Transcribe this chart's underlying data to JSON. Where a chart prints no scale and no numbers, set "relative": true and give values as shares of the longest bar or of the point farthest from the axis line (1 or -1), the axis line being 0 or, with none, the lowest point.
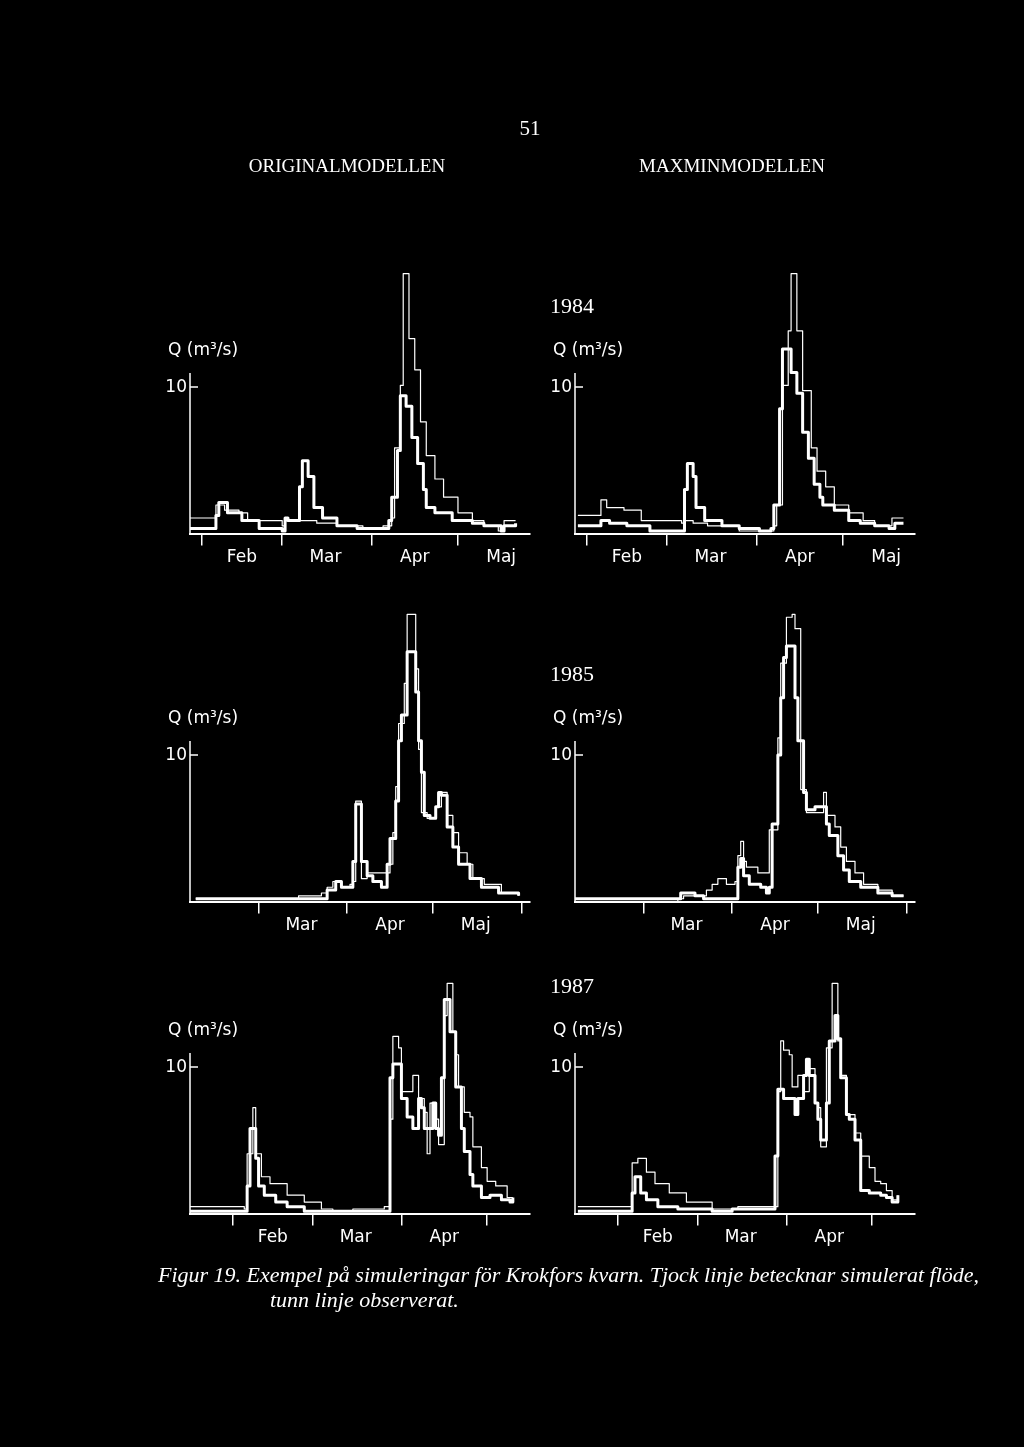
{
  "chart_data": [
    {
      "type": "step",
      "relative": true,
      "title": "ORIGINALMODELLEN",
      "ylabel": "Q (m³/s)",
      "annotations": [
        "10",
        "51"
      ],
      "xlim": [
        "--01-28",
        "--05-26"
      ],
      "xticks": [
        {
          "value": "--02-01",
          "label": null
        },
        {
          "value": "--02-15",
          "label": "Feb"
        },
        {
          "value": "--03-01",
          "label": null
        },
        {
          "value": "--03-16",
          "label": "Mar"
        },
        {
          "value": "--04-01",
          "label": null
        },
        {
          "value": "--04-16",
          "label": "Apr"
        },
        {
          "value": "--05-01",
          "label": null
        },
        {
          "value": "--05-16",
          "label": "Maj"
        }
      ],
      "series": [
        {
          "color": "#ffffff",
          "x": [
            "--01-28",
            "--02-04",
            "--02-06",
            "--02-07",
            "--02-10",
            "--02-15",
            "--02-21",
            "--03-01",
            "--03-02",
            "--03-03",
            "--03-07",
            "--03-08",
            "--03-10",
            "--03-12",
            "--03-15",
            "--03-20",
            "--03-27",
            "--04-01",
            "--04-05",
            "--04-07",
            "--04-08",
            "--04-10",
            "--04-11",
            "--04-13",
            "--04-15",
            "--04-17",
            "--04-19",
            "--04-20",
            "--04-23",
            "--04-29",
            "--05-06",
            "--05-10",
            "--05-16",
            "--05-17",
            "--05-21"
          ],
          "values": [
            0.02,
            0.02,
            0.07,
            0.12,
            0.08,
            0.05,
            0.02,
            0.01,
            0.06,
            0.05,
            0.18,
            0.28,
            0.22,
            0.1,
            0.06,
            0.03,
            0.02,
            0.02,
            0.02,
            0.05,
            0.14,
            0.32,
            0.53,
            0.49,
            0.37,
            0.27,
            0.17,
            0.1,
            0.08,
            0.05,
            0.04,
            0.03,
            0.01,
            0.03,
            0.04
          ]
        },
        {
          "color": "#ffffff",
          "x": [
            "--01-28",
            "--02-05",
            "--02-06",
            "--02-09",
            "--02-14",
            "--02-17",
            "--03-01",
            "--03-02",
            "--03-08",
            "--03-13",
            "--03-20",
            "--03-29",
            "--04-05",
            "--04-08",
            "--04-09",
            "--04-11",
            "--04-12",
            "--04-13",
            "--04-14",
            "--04-16",
            "--04-18",
            "--04-20",
            "--04-23",
            "--04-26",
            "--05-01",
            "--05-06",
            "--05-10",
            "--05-15",
            "--05-17",
            "--05-21"
          ],
          "values": [
            0.06,
            0.06,
            0.11,
            0.09,
            0.08,
            0.05,
            0.03,
            0.05,
            0.05,
            0.04,
            0.03,
            0.02,
            0.03,
            0.06,
            0.33,
            0.57,
            1,
            1,
            0.75,
            0.63,
            0.43,
            0.3,
            0.21,
            0.14,
            0.08,
            0.05,
            0.03,
            0.01,
            0.05,
            0.05
          ]
        }
      ]
    },
    {
      "type": "step",
      "relative": true,
      "title": "MAXMINMODELLEN",
      "subtitle": "1984",
      "ylabel": "Q (m³/s)",
      "annotations": [
        "10"
      ],
      "xlim": [
        "--01-28",
        "--05-26"
      ],
      "xticks": [
        {
          "value": "--02-01",
          "label": null
        },
        {
          "value": "--02-15",
          "label": "Feb"
        },
        {
          "value": "--03-01",
          "label": null
        },
        {
          "value": "--03-16",
          "label": "Mar"
        },
        {
          "value": "--04-01",
          "label": null
        },
        {
          "value": "--04-16",
          "label": "Apr"
        },
        {
          "value": "--05-01",
          "label": null
        },
        {
          "value": "--05-16",
          "label": "Maj"
        }
      ],
      "series": [
        {
          "color": "#ffffff",
          "x": [
            "--01-29",
            "--02-05",
            "--02-06",
            "--02-09",
            "--02-15",
            "--02-23",
            "--03-06",
            "--03-07",
            "--03-08",
            "--03-10",
            "--03-11",
            "--03-14",
            "--03-20",
            "--03-26",
            "--04-02",
            "--04-06",
            "--04-07",
            "--04-09",
            "--04-10",
            "--04-13",
            "--04-15",
            "--04-17",
            "--04-19",
            "--04-21",
            "--04-23",
            "--04-24",
            "--04-28",
            "--05-03",
            "--05-07",
            "--05-12",
            "--05-17",
            "--05-19",
            "--05-22"
          ],
          "values": [
            0.03,
            0.03,
            0.05,
            0.04,
            0.03,
            0.01,
            0.01,
            0.17,
            0.27,
            0.22,
            0.1,
            0.05,
            0.03,
            0.02,
            0.01,
            0.02,
            0.11,
            0.48,
            0.71,
            0.62,
            0.54,
            0.39,
            0.29,
            0.19,
            0.14,
            0.11,
            0.09,
            0.05,
            0.04,
            0.03,
            0.02,
            0.04,
            0.04
          ]
        },
        {
          "color": "#ffffff",
          "x": [
            "--01-29",
            "--02-05",
            "--02-06",
            "--02-08",
            "--02-14",
            "--02-20",
            "--03-06",
            "--03-07",
            "--03-10",
            "--03-15",
            "--03-26",
            "--04-07",
            "--04-08",
            "--04-10",
            "--04-12",
            "--04-13",
            "--04-15",
            "--04-17",
            "--04-20",
            "--04-22",
            "--04-25",
            "--04-28",
            "--05-03",
            "--05-08",
            "--05-12",
            "--05-17",
            "--05-18",
            "--05-22"
          ],
          "values": [
            0.07,
            0.07,
            0.13,
            0.1,
            0.09,
            0.05,
            0.04,
            0.05,
            0.04,
            0.03,
            0.01,
            0.03,
            0.11,
            0.57,
            0.78,
            1,
            0.78,
            0.55,
            0.33,
            0.24,
            0.18,
            0.11,
            0.08,
            0.05,
            0.03,
            0.03,
            0.06,
            0.06
          ]
        }
      ]
    },
    {
      "type": "step",
      "relative": true,
      "ylabel": "Q (m³/s)",
      "annotations": [
        "10"
      ],
      "xlim": [
        "--02-05",
        "--06-04"
      ],
      "xticks": [
        {
          "value": "--03-01",
          "label": null
        },
        {
          "value": "--03-16",
          "label": "Mar"
        },
        {
          "value": "--04-01",
          "label": null
        },
        {
          "value": "--04-16",
          "label": "Apr"
        },
        {
          "value": "--05-01",
          "label": null
        },
        {
          "value": "--05-16",
          "label": "Maj"
        },
        {
          "value": "--06-01",
          "label": null
        }
      ],
      "series": [
        {
          "color": "#ffffff",
          "x": [
            "--02-07",
            "--03-13",
            "--03-14",
            "--03-15",
            "--03-19",
            "--03-23",
            "--03-25",
            "--03-28",
            "--03-30",
            "--04-02",
            "--04-03",
            "--04-04",
            "--04-05",
            "--04-06",
            "--04-08",
            "--04-10",
            "--04-13",
            "--04-15",
            "--04-16",
            "--04-18",
            "--04-19",
            "--04-20",
            "--04-22",
            "--04-23",
            "--04-25",
            "--04-26",
            "--04-27",
            "--04-28",
            "--04-30",
            "--05-02",
            "--05-03",
            "--05-04",
            "--05-06",
            "--05-08",
            "--05-10",
            "--05-14",
            "--05-18",
            "--05-24",
            "--05-31"
          ],
          "values": [
            0.01,
            0.01,
            0.01,
            0.01,
            0.01,
            0.01,
            0.04,
            0.07,
            0.05,
            0.05,
            0.14,
            0.34,
            0.34,
            0.14,
            0.09,
            0.07,
            0.05,
            0.13,
            0.22,
            0.35,
            0.56,
            0.65,
            0.87,
            0.87,
            0.73,
            0.56,
            0.45,
            0.3,
            0.29,
            0.33,
            0.38,
            0.37,
            0.26,
            0.19,
            0.13,
            0.08,
            0.05,
            0.03,
            0.02
          ]
        },
        {
          "color": "#ffffff",
          "x": [
            "--02-07",
            "--03-13",
            "--03-15",
            "--03-20",
            "--03-23",
            "--03-25",
            "--03-27",
            "--03-30",
            "--04-02",
            "--04-03",
            "--04-04",
            "--04-06",
            "--04-08",
            "--04-16",
            "--04-17",
            "--04-18",
            "--04-19",
            "--04-21",
            "--04-22",
            "--04-24",
            "--04-25",
            "--04-26",
            "--04-27",
            "--04-29",
            "--05-01",
            "--05-02",
            "--05-04",
            "--05-06",
            "--05-08",
            "--05-10",
            "--05-13",
            "--05-15",
            "--05-19",
            "--05-25",
            "--05-31"
          ],
          "values": [
            0.01,
            0.01,
            0.02,
            0.02,
            0.03,
            0.05,
            0.07,
            0.05,
            0.06,
            0.07,
            0.35,
            0.08,
            0.1,
            0.13,
            0.24,
            0.4,
            0.62,
            0.76,
            1,
            1,
            0.81,
            0.53,
            0.31,
            0.29,
            0.29,
            0.33,
            0.38,
            0.3,
            0.24,
            0.17,
            0.13,
            0.08,
            0.06,
            0.03,
            0.02
          ]
        }
      ]
    },
    {
      "type": "step",
      "relative": true,
      "subtitle": "1985",
      "ylabel": "Q (m³/s)",
      "annotations": [
        "10"
      ],
      "xlim": [
        "--02-05",
        "--06-04"
      ],
      "xticks": [
        {
          "value": "--03-01",
          "label": null
        },
        {
          "value": "--03-16",
          "label": "Mar"
        },
        {
          "value": "--04-01",
          "label": null
        },
        {
          "value": "--04-16",
          "label": "Apr"
        },
        {
          "value": "--05-01",
          "label": null
        },
        {
          "value": "--05-16",
          "label": "Maj"
        },
        {
          "value": "--06-01",
          "label": null
        }
      ],
      "series": [
        {
          "color": "#ffffff",
          "x": [
            "--02-05",
            "--03-13",
            "--03-14",
            "--03-16",
            "--03-19",
            "--03-22",
            "--04-02",
            "--04-03",
            "--04-04",
            "--04-05",
            "--04-07",
            "--04-11",
            "--04-13",
            "--04-14",
            "--04-15",
            "--04-17",
            "--04-18",
            "--04-19",
            "--04-20",
            "--04-22",
            "--04-23",
            "--04-24",
            "--04-26",
            "--04-27",
            "--04-30",
            "--05-02",
            "--05-04",
            "--05-05",
            "--05-08",
            "--05-10",
            "--05-12",
            "--05-16",
            "--05-22",
            "--05-27",
            "--05-31"
          ],
          "values": [
            0.01,
            0.01,
            0.03,
            0.03,
            0.02,
            0.01,
            0.01,
            0.12,
            0.15,
            0.09,
            0.06,
            0.05,
            0.03,
            0.05,
            0.27,
            0.51,
            0.71,
            0.85,
            0.89,
            0.89,
            0.71,
            0.56,
            0.38,
            0.32,
            0.33,
            0.33,
            0.27,
            0.23,
            0.16,
            0.11,
            0.07,
            0.05,
            0.03,
            0.02,
            0.02
          ]
        },
        {
          "color": "#ffffff",
          "x": [
            "--02-05",
            "--03-13",
            "--03-15",
            "--03-23",
            "--03-25",
            "--03-27",
            "--03-30",
            "--04-02",
            "--04-03",
            "--04-04",
            "--04-05",
            "--04-06",
            "--04-10",
            "--04-14",
            "--04-17",
            "--04-18",
            "--04-20",
            "--04-22",
            "--04-23",
            "--04-25",
            "--04-27",
            "--05-02",
            "--05-03",
            "--05-04",
            "--05-07",
            "--05-09",
            "--05-11",
            "--05-14",
            "--05-17",
            "--05-22",
            "--05-27",
            "--05-31"
          ],
          "values": [
            0,
            0.01,
            0.02,
            0.04,
            0.06,
            0.08,
            0.06,
            0.07,
            0.16,
            0.21,
            0.14,
            0.12,
            0.1,
            0.25,
            0.57,
            0.83,
            0.99,
            1,
            0.95,
            0.39,
            0.31,
            0.31,
            0.38,
            0.3,
            0.26,
            0.19,
            0.14,
            0.1,
            0.06,
            0.04,
            0.02,
            0.02
          ]
        }
      ]
    },
    {
      "type": "step",
      "relative": true,
      "ylabel": "Q (m³/s)",
      "annotations": [
        "10"
      ],
      "xlim": [
        "--01-17",
        "--05-16"
      ],
      "xticks": [
        {
          "value": "--02-01",
          "label": null
        },
        {
          "value": "--02-15",
          "label": "Feb"
        },
        {
          "value": "--03-01",
          "label": null
        },
        {
          "value": "--03-16",
          "label": "Mar"
        },
        {
          "value": "--04-01",
          "label": null
        },
        {
          "value": "--04-16",
          "label": "Apr"
        },
        {
          "value": "--05-01",
          "label": null
        }
      ],
      "series": [
        {
          "color": "#ffffff",
          "x": [
            "--01-17",
            "--02-05",
            "--02-06",
            "--02-07",
            "--02-09",
            "--02-10",
            "--02-12",
            "--02-16",
            "--02-20",
            "--02-26",
            "--03-06",
            "--03-27",
            "--03-28",
            "--03-29",
            "--04-01",
            "--04-03",
            "--04-05",
            "--04-07",
            "--04-08",
            "--04-09",
            "--04-12",
            "--04-13",
            "--04-14",
            "--04-15",
            "--04-16",
            "--04-18",
            "--04-20",
            "--04-22",
            "--04-23",
            "--04-25",
            "--04-26",
            "--04-29",
            "--05-02",
            "--05-06",
            "--05-09",
            "--05-10"
          ],
          "values": [
            0.01,
            0.01,
            0.12,
            0.37,
            0.24,
            0.12,
            0.08,
            0.05,
            0.03,
            0.01,
            0.01,
            0.01,
            0.59,
            0.65,
            0.5,
            0.42,
            0.37,
            0.5,
            0.46,
            0.37,
            0.48,
            0.37,
            0.34,
            0.59,
            0.93,
            0.79,
            0.55,
            0.37,
            0.27,
            0.17,
            0.12,
            0.07,
            0.08,
            0.06,
            0.05,
            0.07
          ]
        },
        {
          "color": "#ffffff",
          "x": [
            "--01-17",
            "--02-05",
            "--02-06",
            "--02-08",
            "--02-09",
            "--02-11",
            "--02-14",
            "--02-20",
            "--02-26",
            "--03-04",
            "--03-08",
            "--03-15",
            "--03-26",
            "--03-28",
            "--03-29",
            "--03-31",
            "--04-01",
            "--04-04",
            "--04-05",
            "--04-07",
            "--04-09",
            "--04-10",
            "--04-11",
            "--04-13",
            "--04-14",
            "--04-16",
            "--04-17",
            "--04-19",
            "--04-20",
            "--04-21",
            "--04-23",
            "--04-25",
            "--04-26",
            "--04-29",
            "--05-01",
            "--05-04",
            "--05-08",
            "--05-10"
          ],
          "values": [
            0.03,
            0.02,
            0.26,
            0.46,
            0.26,
            0.16,
            0.13,
            0.08,
            0.05,
            0.02,
            0.01,
            0.02,
            0.03,
            0.41,
            0.77,
            0.72,
            0.53,
            0.53,
            0.6,
            0.5,
            0.44,
            0.26,
            0.48,
            0.41,
            0.3,
            0.86,
            1,
            0.79,
            0.69,
            0.55,
            0.44,
            0.42,
            0.29,
            0.2,
            0.14,
            0.12,
            0.07,
            0.07
          ]
        }
      ]
    },
    {
      "type": "step",
      "relative": true,
      "subtitle": "1987",
      "ylabel": "Q (m³/s)",
      "annotations": [
        "10",
        "Figur 19. Exempel på simuleringar för Krokfors kvarn. Tjock linje betecknar simulerat flöde, tunn linje observerat."
      ],
      "xlim": [
        "--01-17",
        "--05-16"
      ],
      "xticks": [
        {
          "value": "--02-01",
          "label": null
        },
        {
          "value": "--02-15",
          "label": "Feb"
        },
        {
          "value": "--03-01",
          "label": null
        },
        {
          "value": "--03-16",
          "label": "Mar"
        },
        {
          "value": "--04-01",
          "label": null
        },
        {
          "value": "--04-16",
          "label": "Apr"
        },
        {
          "value": "--05-01",
          "label": null
        }
      ],
      "series": [
        {
          "color": "#ffffff",
          "x": [
            "--01-18",
            "--02-05",
            "--02-06",
            "--02-07",
            "--02-09",
            "--02-11",
            "--02-15",
            "--02-22",
            "--03-06",
            "--03-13",
            "--03-27",
            "--03-28",
            "--03-29",
            "--03-31",
            "--04-04",
            "--04-05",
            "--04-07",
            "--04-08",
            "--04-09",
            "--04-11",
            "--04-12",
            "--04-13",
            "--04-15",
            "--04-16",
            "--04-18",
            "--04-19",
            "--04-20",
            "--04-22",
            "--04-23",
            "--04-25",
            "--04-27",
            "--04-30",
            "--05-04",
            "--05-06",
            "--05-08",
            "--05-10"
          ],
          "values": [
            0.01,
            0.01,
            0.09,
            0.16,
            0.09,
            0.06,
            0.03,
            0.02,
            0.01,
            0.02,
            0.02,
            0.25,
            0.54,
            0.5,
            0.43,
            0.5,
            0.6,
            0.67,
            0.6,
            0.48,
            0.41,
            0.32,
            0.48,
            0.75,
            0.86,
            0.76,
            0.59,
            0.43,
            0.41,
            0.32,
            0.1,
            0.09,
            0.08,
            0.07,
            0.05,
            0.08
          ]
        },
        {
          "color": "#ffffff",
          "x": [
            "--01-18",
            "--02-05",
            "--02-06",
            "--02-08",
            "--02-11",
            "--02-14",
            "--02-19",
            "--02-25",
            "--03-06",
            "--03-15",
            "--03-28",
            "--03-29",
            "--03-30",
            "--03-31",
            "--04-02",
            "--04-03",
            "--04-05",
            "--04-07",
            "--04-09",
            "--04-11",
            "--04-12",
            "--04-13",
            "--04-15",
            "--04-17",
            "--04-19",
            "--04-20",
            "--04-22",
            "--04-25",
            "--04-27",
            "--04-30",
            "--05-02",
            "--05-04",
            "--05-06",
            "--05-08",
            "--05-10"
          ],
          "values": [
            0.03,
            0.03,
            0.22,
            0.24,
            0.18,
            0.13,
            0.09,
            0.05,
            0.02,
            0.03,
            0.03,
            0.53,
            0.75,
            0.71,
            0.69,
            0.55,
            0.6,
            0.53,
            0.63,
            0.48,
            0.46,
            0.29,
            0.72,
            1,
            0.75,
            0.6,
            0.43,
            0.35,
            0.25,
            0.2,
            0.14,
            0.13,
            0.1,
            0.06,
            0.08
          ]
        }
      ]
    }
  ]
}
